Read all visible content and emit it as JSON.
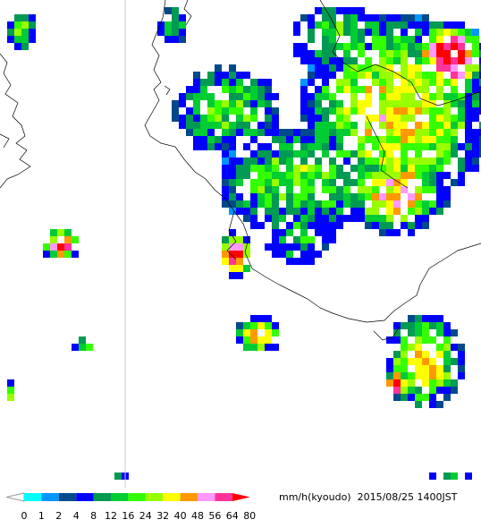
{
  "legend": {
    "unit": "mm/h(kyoudo)",
    "timestamp": "2015/08/25 1400JST",
    "ticks": [
      "0",
      "1",
      "2",
      "4",
      "8",
      "12",
      "16",
      "24",
      "32",
      "40",
      "48",
      "56",
      "64",
      "80"
    ],
    "colors": [
      "#ffffff",
      "#00ffff",
      "#0096ff",
      "#004a8c",
      "#0000ff",
      "#009a52",
      "#00cc33",
      "#33ff00",
      "#99ff00",
      "#ffff00",
      "#ff9900",
      "#ff99ff",
      "#ff3399",
      "#ff0000"
    ]
  }
}
